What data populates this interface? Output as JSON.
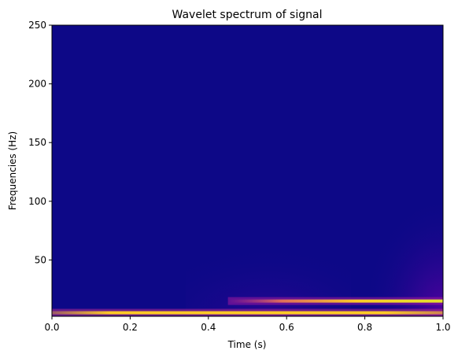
{
  "chart_data": {
    "type": "heatmap",
    "title": "Wavelet spectrum of signal",
    "xlabel": "Time (s)",
    "ylabel": "Frequencies (Hz)",
    "xlim": [
      0.0,
      1.0
    ],
    "ylim": [
      2,
      250
    ],
    "x_ticks": [
      "0.0",
      "0.2",
      "0.4",
      "0.6",
      "0.8",
      "1.0"
    ],
    "y_ticks": [
      "50",
      "100",
      "150",
      "200",
      "250"
    ],
    "colormap": "plasma",
    "background_color": "#0d0887",
    "grid": false,
    "bands": [
      {
        "frequency_hz": 5,
        "t_start": 0.0,
        "t_end": 1.0,
        "peak_intensity": 0.95,
        "edge_fade": 0.05
      },
      {
        "frequency_hz": 15,
        "t_start": 0.45,
        "t_end": 1.0,
        "peak_intensity": 0.9,
        "edge_fade": 0.12
      }
    ]
  }
}
